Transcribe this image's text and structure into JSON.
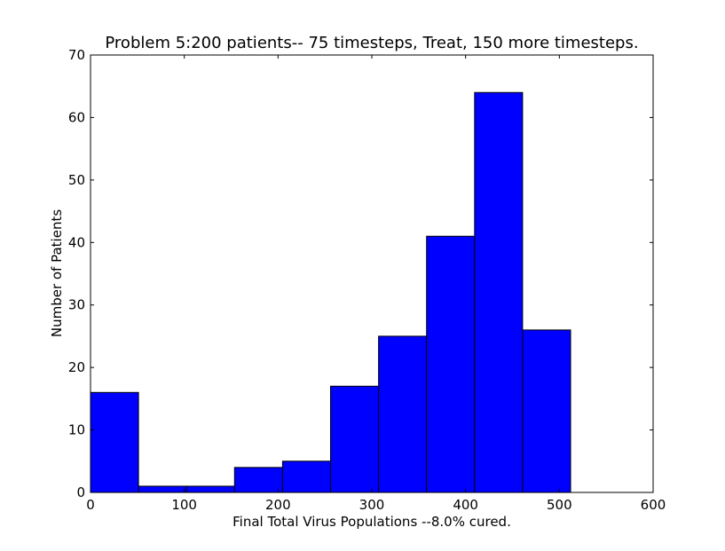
{
  "chart_data": {
    "type": "bar",
    "title": "Problem 5:200 patients--  75 timesteps, Treat, 150 more timesteps.",
    "xlabel": "Final Total Virus Populations --8.0% cured.",
    "ylabel": "Number of Patients",
    "xlim": [
      0,
      600
    ],
    "ylim": [
      0,
      70
    ],
    "xticks": [
      0,
      100,
      200,
      300,
      400,
      500,
      600
    ],
    "yticks": [
      0,
      10,
      20,
      30,
      40,
      50,
      60,
      70
    ],
    "grid": false,
    "bar_color": "#0000ff",
    "bins": [
      {
        "x0": 0,
        "x1": 51.2,
        "count": 16
      },
      {
        "x0": 51.2,
        "x1": 102.4,
        "count": 1
      },
      {
        "x0": 102.4,
        "x1": 153.6,
        "count": 1
      },
      {
        "x0": 153.6,
        "x1": 204.8,
        "count": 4
      },
      {
        "x0": 204.8,
        "x1": 256,
        "count": 5
      },
      {
        "x0": 256,
        "x1": 307.2,
        "count": 17
      },
      {
        "x0": 307.2,
        "x1": 358.4,
        "count": 25
      },
      {
        "x0": 358.4,
        "x1": 409.6,
        "count": 41
      },
      {
        "x0": 409.6,
        "x1": 460.8,
        "count": 64
      },
      {
        "x0": 460.8,
        "x1": 512,
        "count": 26
      }
    ]
  }
}
